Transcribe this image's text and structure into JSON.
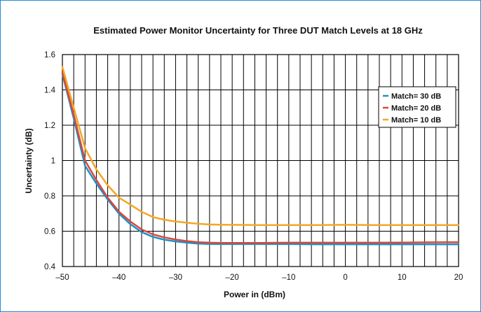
{
  "chart_data": {
    "type": "line",
    "title": "Estimated Power Monitor Uncertainty for Three DUT Match Levels at 18 GHz",
    "xlabel": "Power in (dBm)",
    "ylabel": "Uncertainty (dB)",
    "xlim": [
      -50,
      20
    ],
    "ylim": [
      0.4,
      1.6
    ],
    "x_ticks": [
      -50,
      -40,
      -30,
      -20,
      -10,
      0,
      10,
      20
    ],
    "x_tick_labels": [
      "–50",
      "–40",
      "–30",
      "–20",
      "–10",
      "0",
      "10",
      "20"
    ],
    "y_ticks": [
      0.4,
      0.6,
      0.8,
      1,
      1.2,
      1.4,
      1.6
    ],
    "y_tick_labels": [
      "0.4",
      "0.6",
      "0.8",
      "1",
      "1.2",
      "1.4",
      "1.6"
    ],
    "x_grid_step": 2,
    "grid": true,
    "legend_position": "top-right",
    "series": [
      {
        "name": "Match= 30 dB",
        "color": "#1f8fc6",
        "x": [
          -50,
          -48,
          -46,
          -44,
          -42,
          -40,
          -38,
          -36,
          -34,
          -32,
          -30,
          -28,
          -26,
          -24,
          -22,
          -20,
          -15,
          -10,
          -5,
          0,
          5,
          10,
          15,
          20
        ],
        "y": [
          1.49,
          1.24,
          0.97,
          0.87,
          0.78,
          0.7,
          0.64,
          0.595,
          0.568,
          0.552,
          0.542,
          0.535,
          0.53,
          0.528,
          0.527,
          0.527,
          0.527,
          0.527,
          0.526,
          0.526,
          0.526,
          0.526,
          0.526,
          0.526
        ]
      },
      {
        "name": "Match= 20 dB",
        "color": "#d9483b",
        "x": [
          -50,
          -48,
          -46,
          -44,
          -42,
          -40,
          -38,
          -36,
          -34,
          -32,
          -30,
          -28,
          -26,
          -24,
          -22,
          -20,
          -15,
          -10,
          -5,
          0,
          5,
          10,
          15,
          20
        ],
        "y": [
          1.5,
          1.26,
          1.0,
          0.89,
          0.79,
          0.71,
          0.655,
          0.61,
          0.582,
          0.565,
          0.553,
          0.544,
          0.538,
          0.535,
          0.534,
          0.534,
          0.534,
          0.535,
          0.535,
          0.535,
          0.535,
          0.536,
          0.537,
          0.538
        ]
      },
      {
        "name": "Match= 10 dB",
        "color": "#f5a623",
        "x": [
          -50,
          -48,
          -46,
          -44,
          -42,
          -40,
          -38,
          -36,
          -34,
          -32,
          -30,
          -28,
          -26,
          -24,
          -22,
          -20,
          -15,
          -10,
          -5,
          0,
          5,
          10,
          15,
          20
        ],
        "y": [
          1.53,
          1.3,
          1.07,
          0.95,
          0.86,
          0.79,
          0.75,
          0.71,
          0.68,
          0.665,
          0.655,
          0.648,
          0.642,
          0.638,
          0.637,
          0.636,
          0.635,
          0.635,
          0.635,
          0.636,
          0.635,
          0.635,
          0.635,
          0.635
        ]
      }
    ]
  }
}
